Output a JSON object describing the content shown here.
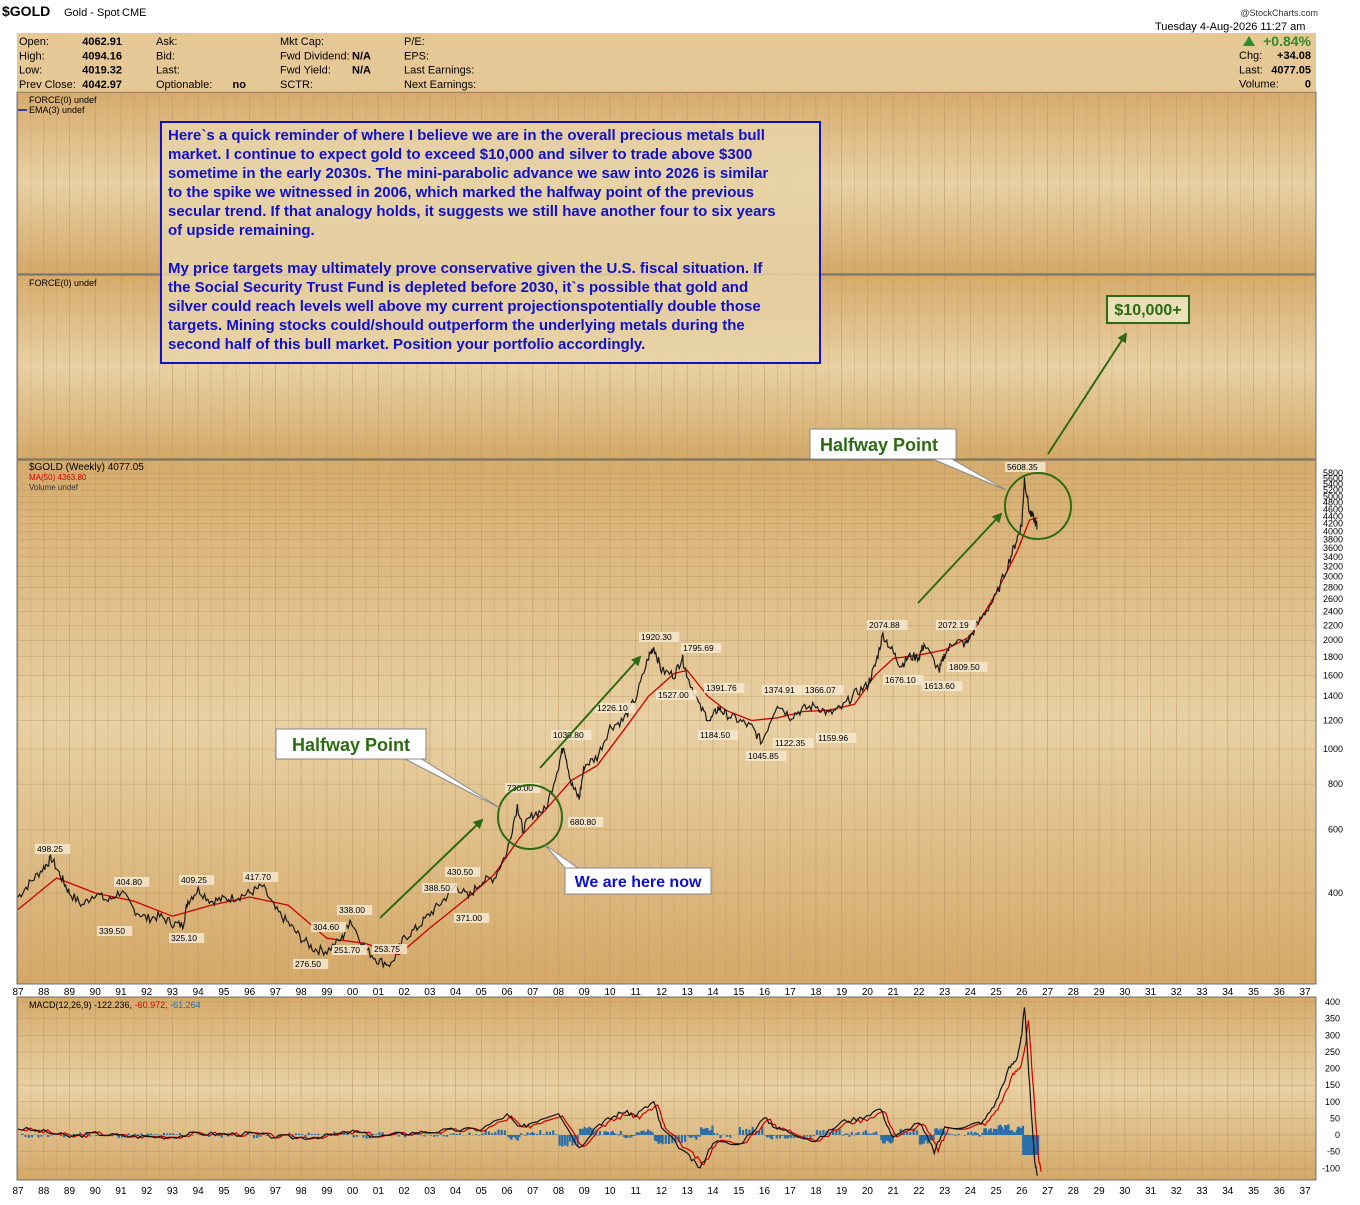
{
  "header": {
    "symbol": "$GOLD",
    "name": "Gold - Spot",
    "exchange": "CME",
    "datetime": "Tuesday  4-Aug-2026  11:27 am",
    "watermark": "@StockCharts.com",
    "change_pct": "+0.84%",
    "quote_rows": [
      {
        "l1": "Open:",
        "v1": "4062.91",
        "l2": "Ask:",
        "v2": "",
        "l3": "Mkt Cap:",
        "v3": "",
        "l4": "P/E:",
        "l5": "Chg:",
        "v5": "+34.08"
      },
      {
        "l1": "High:",
        "v1": "4094.16",
        "l2": "Bid:",
        "v2": "",
        "l3": "Fwd Dividend:",
        "v3": "N/A",
        "l4": "EPS:",
        "l5": "Last:",
        "v5": "4077.05"
      },
      {
        "l1": "Low:",
        "v1": "4019.32",
        "l2": "Last:",
        "v2": "",
        "l3": "Fwd Yield:",
        "v3": "N/A",
        "l4": "Last Earnings:",
        "l5": "Volume:",
        "v5": "0"
      },
      {
        "l1": "Prev Close:",
        "v1": "4042.97",
        "l2": "Optionable:",
        "v2": "no",
        "l3": "SCTR:",
        "v3": "",
        "l4": "Next Earnings:",
        "l5": "",
        "v5": ""
      }
    ]
  },
  "panels": {
    "force1_label": "FORCE(0) undef",
    "ema_label": "EMA(3) undef",
    "force2_label": "FORCE(0) undef",
    "price_label": "$GOLD (Weekly) 4077.05",
    "ma_label": "MA(50) 4363.80",
    "volume_label": "Volume undef",
    "macd_label": "MACD(12,26,9) -122.236,",
    "macd_signal": "-60.972,",
    "macd_hist": "-61.264"
  },
  "note": {
    "p1": [
      "Here`s a quick reminder of where I believe we are in the overall precious metals bull",
      "market. I continue to expect gold to exceed $10,000 and silver to trade above $300",
      "sometime in the early 2030s. The mini-parabolic advance we saw into 2026 is similar",
      "to the spike we witnessed in 2006, which marked the halfway point of the previous",
      "secular trend. If that analogy holds, it suggests we still have another four to six years",
      "of upside remaining."
    ],
    "p2": [
      "My price targets may ultimately prove conservative given the U.S. fiscal situation. If",
      "the Social Security Trust Fund is depleted before 2030, it`s possible that gold and",
      "silver could reach levels well above my current projectionspotentially double those",
      "targets. Mining stocks could/should outperform the underlying metals during the",
      "second half of this bull market. Position your portfolio accordingly."
    ]
  },
  "callouts": {
    "halfway_1": "Halfway Point",
    "halfway_2": "Halfway Point",
    "here_now": "We are here now",
    "target": "$10,000+"
  },
  "colors": {
    "panel_bg": "#d9b27a",
    "price_line": "#1a1a1a",
    "ma_line": "#cc0000",
    "annotation_green": "#2d6a12",
    "note_blue": "#1010c8",
    "macd_hist": "#2a6fa8"
  },
  "chart_data": {
    "type": "line",
    "title": "$GOLD (Weekly) 4077.05",
    "y_scale": "log",
    "ylim": [
      300,
      5800
    ],
    "y_ticks": [
      400,
      600,
      800,
      1000,
      1200,
      1400,
      1600,
      1800,
      2000,
      2200,
      2400,
      2600,
      2800,
      3000,
      3200,
      3400,
      3600,
      3800,
      4000,
      4200,
      4400,
      4600,
      4800,
      5000,
      5200,
      5400,
      5600,
      5800
    ],
    "x_ticks": [
      "87",
      "88",
      "89",
      "90",
      "91",
      "92",
      "93",
      "94",
      "95",
      "96",
      "97",
      "98",
      "99",
      "00",
      "01",
      "02",
      "03",
      "04",
      "05",
      "06",
      "07",
      "08",
      "09",
      "10",
      "11",
      "12",
      "13",
      "14",
      "15",
      "16",
      "17",
      "18",
      "19",
      "20",
      "21",
      "22",
      "23",
      "24",
      "25",
      "26",
      "27",
      "28",
      "29",
      "30",
      "31",
      "32",
      "33",
      "34",
      "35",
      "36",
      "37"
    ],
    "series": [
      {
        "name": "$GOLD",
        "x": [
          1987.0,
          1987.5,
          1988.0,
          1988.3,
          1988.7,
          1989.0,
          1989.5,
          1990.0,
          1990.5,
          1991.0,
          1991.5,
          1992.0,
          1992.5,
          1993.0,
          1993.4,
          1993.6,
          1994.0,
          1994.5,
          1995.0,
          1995.5,
          1996.0,
          1996.5,
          1997.0,
          1997.5,
          1998.0,
          1998.5,
          1999.0,
          1999.6,
          1999.9,
          2000.5,
          2001.0,
          2001.5,
          2002.0,
          2002.5,
          2003.0,
          2003.5,
          2004.0,
          2004.5,
          2005.0,
          2005.5,
          2006.0,
          2006.4,
          2006.6,
          2007.0,
          2007.5,
          2008.0,
          2008.2,
          2008.5,
          2008.8,
          2009.0,
          2009.5,
          2010.0,
          2010.5,
          2011.0,
          2011.5,
          2011.7,
          2012.0,
          2012.5,
          2012.8,
          2013.0,
          2013.5,
          2013.9,
          2014.2,
          2014.5,
          2015.0,
          2015.5,
          2015.9,
          2016.5,
          2017.0,
          2017.5,
          2018.0,
          2018.5,
          2019.0,
          2019.5,
          2020.0,
          2020.3,
          2020.6,
          2021.0,
          2021.3,
          2021.6,
          2022.0,
          2022.2,
          2022.8,
          2023.0,
          2023.4,
          2023.8,
          2024.0,
          2024.5,
          2025.0,
          2025.5,
          2025.8,
          2026.0,
          2026.1,
          2026.3,
          2026.5,
          2026.6
        ],
        "values": [
          390,
          430,
          470,
          498.25,
          440,
          400,
          370,
          400,
          380,
          404.8,
          360,
          340,
          345,
          330,
          325.1,
          380,
          409.25,
          380,
          385,
          390,
          400,
          417.7,
          360,
          330,
          300,
          280,
          276.5,
          300,
          338,
          280,
          260,
          253.75,
          300,
          320,
          350,
          380,
          420,
          390,
          430.5,
          440,
          520,
          700,
          600,
          660,
          680,
          900,
          1030.8,
          800,
          730,
          900,
          950,
          1150,
          1200,
          1380,
          1800,
          1920.3,
          1650,
          1600,
          1795.69,
          1600,
          1300,
          1200,
          1300,
          1250,
          1200,
          1150,
          1045.85,
          1340,
          1230,
          1290,
          1320,
          1250,
          1300,
          1420,
          1500,
          1700,
          2074.88,
          1850,
          1700,
          1800,
          1800,
          1950,
          1650,
          1830,
          2000,
          1950,
          2050,
          2350,
          2650,
          3300,
          3800,
          4200,
          5608.35,
          4500,
          4300,
          4077.05
        ]
      },
      {
        "name": "MA(50)",
        "x": [
          1987.0,
          1988.5,
          1990.0,
          1991.5,
          1993.0,
          1994.5,
          1996.0,
          1997.5,
          1999.0,
          2000.5,
          2001.8,
          2003.0,
          2004.5,
          2005.5,
          2006.5,
          2007.5,
          2008.5,
          2009.5,
          2010.5,
          2011.5,
          2012.5,
          2013.0,
          2013.8,
          2014.5,
          2015.5,
          2016.5,
          2017.5,
          2018.5,
          2019.5,
          2020.3,
          2021.0,
          2022.0,
          2023.0,
          2024.0,
          2025.0,
          2025.8,
          2026.3,
          2026.6
        ],
        "values": [
          360,
          440,
          400,
          380,
          345,
          370,
          390,
          370,
          300,
          290,
          270,
          320,
          390,
          450,
          570,
          680,
          820,
          900,
          1120,
          1400,
          1620,
          1650,
          1400,
          1280,
          1200,
          1220,
          1270,
          1280,
          1330,
          1600,
          1780,
          1820,
          1880,
          2050,
          2700,
          3500,
          4300,
          4363.8
        ]
      }
    ],
    "price_labels": [
      "498.25",
      "404.80",
      "339.50",
      "409.25",
      "325.10",
      "417.70",
      "276.50",
      "304.60",
      "338.00",
      "251.70",
      "253.75",
      "388.50",
      "430.50",
      "371.00",
      "730.00",
      "1030.80",
      "680.80",
      "1226.10",
      "1920.30",
      "1795.69",
      "1527.00",
      "1391.76",
      "1184.50",
      "1045.85",
      "1374.91",
      "1122.35",
      "1366.07",
      "1159.96",
      "2074.88",
      "1676.10",
      "2072.19",
      "1613.60",
      "1809.50",
      "5608.35"
    ],
    "macd": {
      "ylim": [
        -120,
        400
      ],
      "y_ticks": [
        400,
        350,
        300,
        250,
        200,
        150,
        100,
        50,
        0,
        -50,
        -100
      ],
      "x": [
        1987.0,
        1988.0,
        1989.0,
        1990.0,
        1991.0,
        1992.0,
        1993.0,
        1994.0,
        1995.0,
        1996.0,
        1997.0,
        1998.0,
        1999.0,
        2000.0,
        2001.0,
        2002.0,
        2003.0,
        2004.0,
        2005.0,
        2006.0,
        2006.5,
        2007.0,
        2008.0,
        2008.8,
        2009.5,
        2010.0,
        2010.5,
        2011.0,
        2011.7,
        2012.0,
        2013.0,
        2013.5,
        2014.0,
        2015.0,
        2016.0,
        2016.5,
        2017.0,
        2018.0,
        2019.0,
        2019.7,
        2020.5,
        2021.0,
        2022.0,
        2022.6,
        2023.0,
        2024.0,
        2024.5,
        2025.0,
        2025.5,
        2025.8,
        2026.0,
        2026.1,
        2026.3,
        2026.5,
        2026.6
      ],
      "values": [
        20,
        10,
        -5,
        5,
        -3,
        -5,
        -5,
        5,
        2,
        4,
        -5,
        -8,
        -3,
        10,
        -5,
        5,
        10,
        15,
        18,
        60,
        20,
        40,
        70,
        -40,
        30,
        50,
        70,
        60,
        100,
        20,
        -60,
        -100,
        -20,
        -30,
        50,
        20,
        10,
        -20,
        40,
        50,
        80,
        -10,
        40,
        -50,
        20,
        30,
        40,
        100,
        200,
        230,
        300,
        390,
        150,
        -80,
        -122.236
      ]
    }
  }
}
